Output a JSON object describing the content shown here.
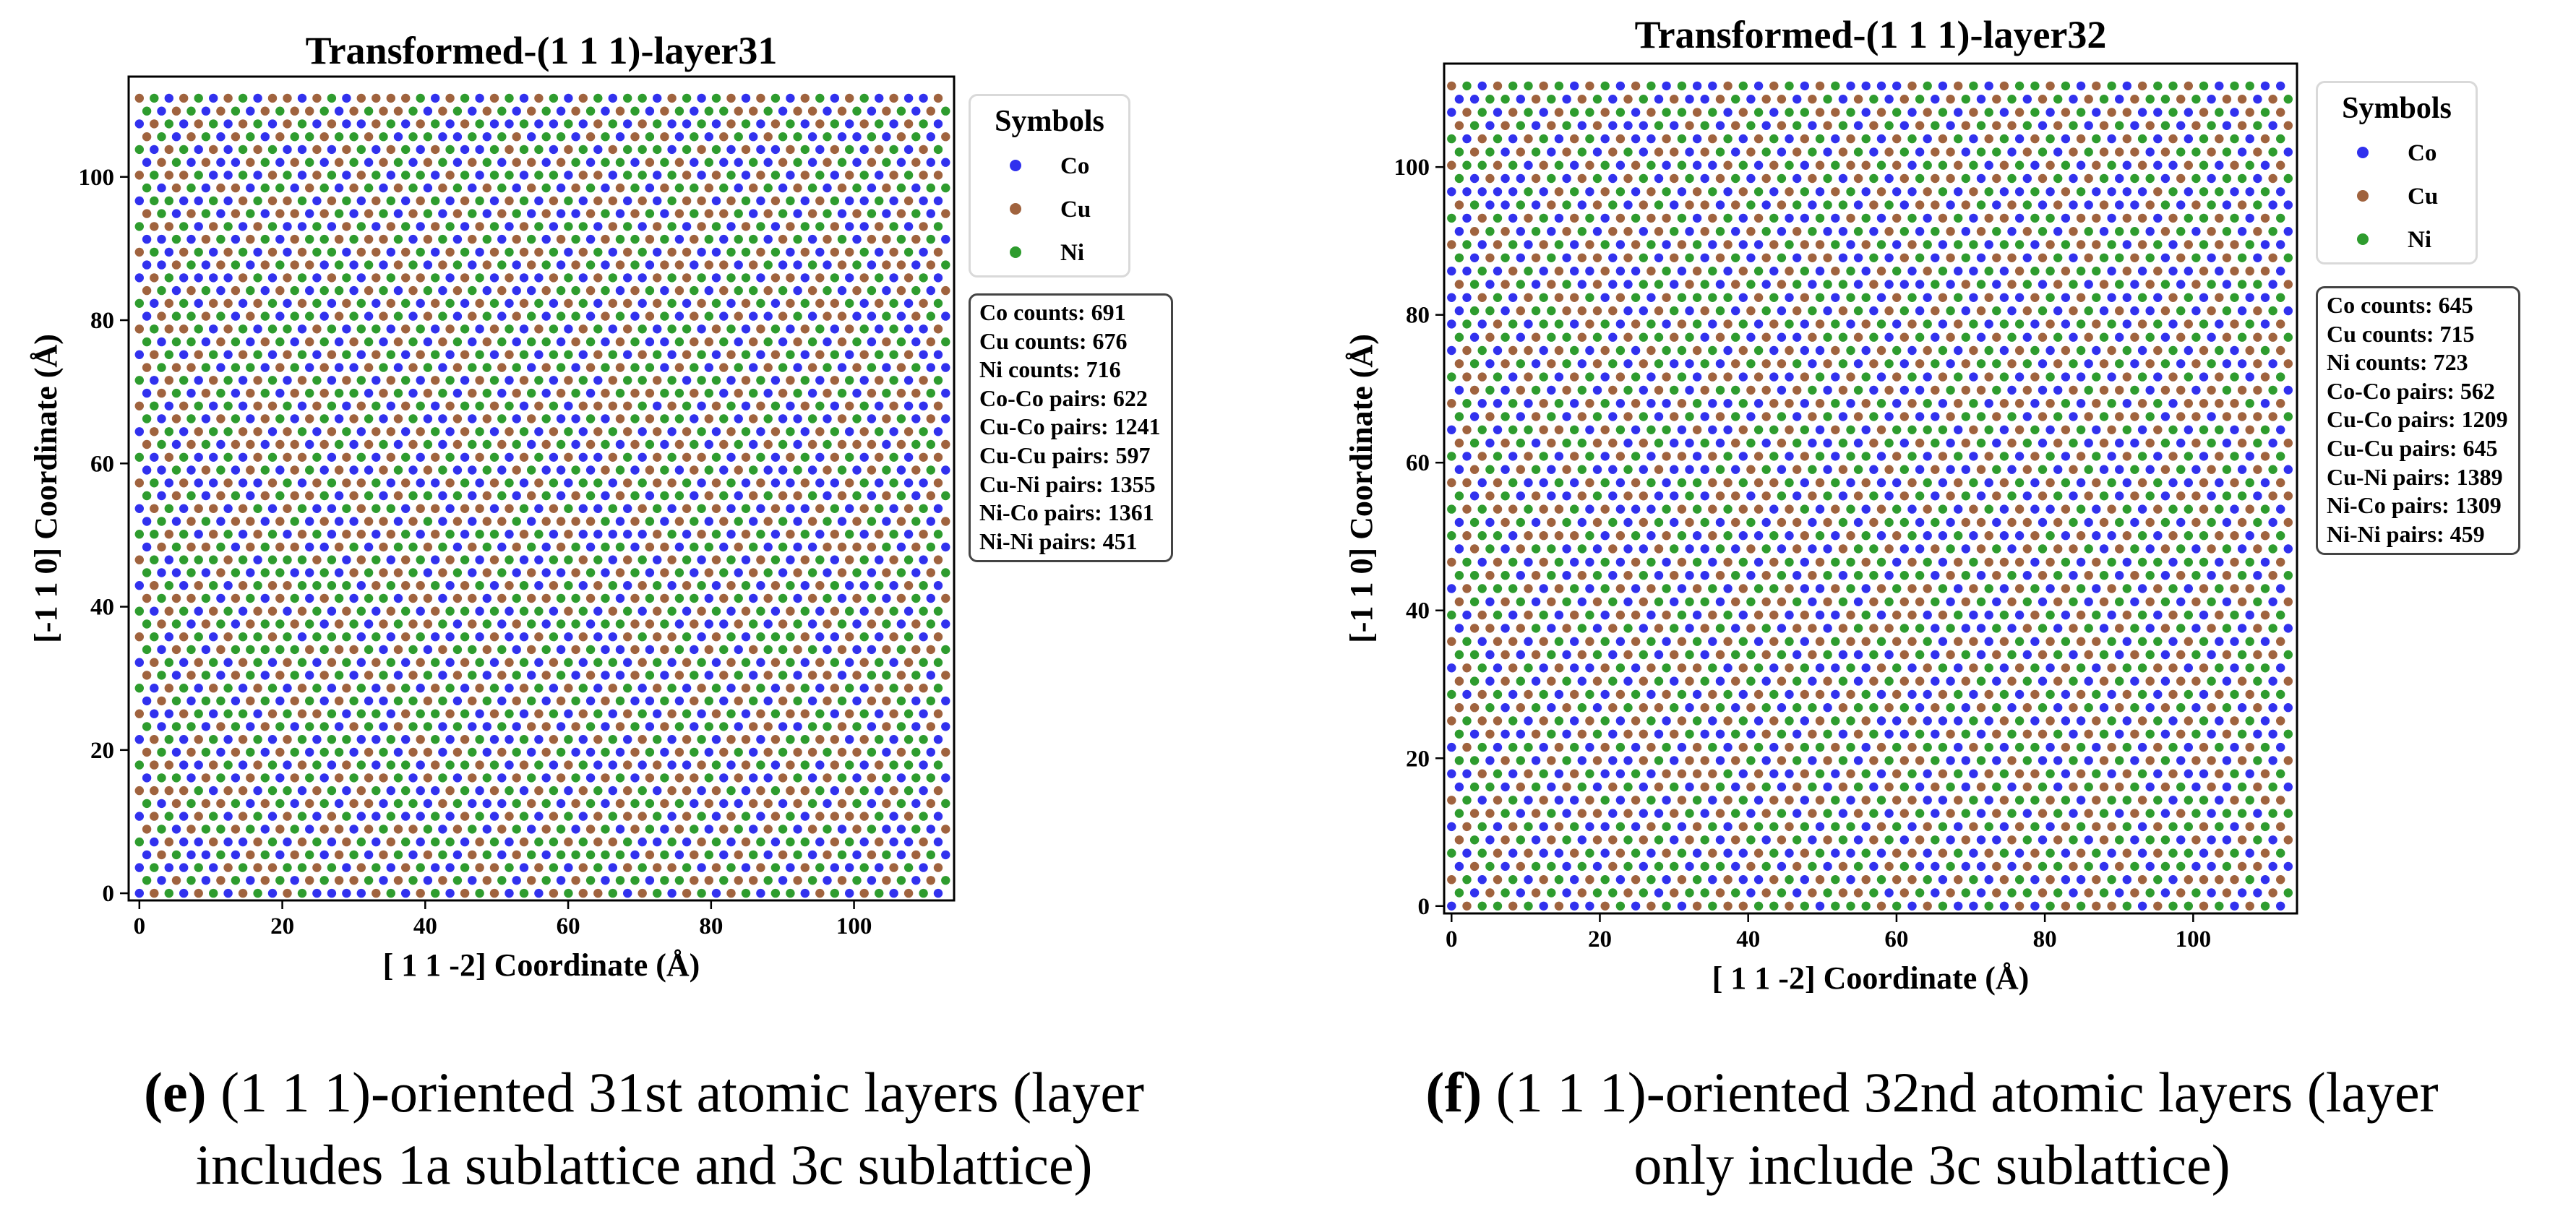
{
  "colors": {
    "Co": "#3131ee",
    "Cu": "#a0633e",
    "Ni": "#2e9c2e"
  },
  "panels": [
    {
      "title": "Transformed-(1 1 1)-layer31",
      "caption": {
        "label": "(e)",
        "line1": " (1 1 1)-oriented 31st atomic layers (layer",
        "line2": "includes 1a sublattice and 3c sublattice)"
      },
      "stats": [
        "Co counts: 691",
        "Cu counts: 676",
        "Ni counts: 716",
        "Co-Co pairs: 622",
        "Cu-Co pairs: 1241",
        "Cu-Cu pairs: 597",
        "Cu-Ni pairs: 1355",
        "Ni-Co pairs: 1361",
        "Ni-Ni pairs: 451"
      ]
    },
    {
      "title": "Transformed-(1 1 1)-layer32",
      "caption": {
        "label": "(f)",
        "line1": " (1 1 1)-oriented 32nd atomic layers (layer",
        "line2": "only include 3c sublattice)"
      },
      "stats": [
        "Co counts: 645",
        "Cu counts: 715",
        "Ni counts: 723",
        "Co-Co pairs: 562",
        "Cu-Co pairs: 1209",
        "Cu-Cu pairs: 645",
        "Cu-Ni pairs: 1389",
        "Ni-Co pairs: 1309",
        "Ni-Ni pairs: 459"
      ]
    }
  ],
  "chart_data": [
    {
      "type": "scatter",
      "title": "Transformed-(1 1 1)-layer31",
      "xlabel": "[ 1  1 -2] Coordinate (Å)",
      "ylabel": "[-1  1  0] Coordinate (Å)",
      "xlim": [
        -1.5,
        114
      ],
      "ylim": [
        -1,
        114
      ],
      "xticks": [
        0,
        20,
        40,
        60,
        80,
        100
      ],
      "yticks": [
        0,
        20,
        40,
        60,
        80,
        100
      ],
      "grid": false,
      "legend": {
        "title": "Symbols",
        "entries": [
          "Co",
          "Cu",
          "Ni"
        ],
        "placement": "outside-upper-right"
      },
      "lattice": {
        "x_spacing": 2.07,
        "y_spacing": 1.79,
        "alternate_row_shift": 1.035,
        "columns": 55,
        "rows": 63
      },
      "series": [
        {
          "name": "Co",
          "count": 691
        },
        {
          "name": "Cu",
          "count": 676
        },
        {
          "name": "Ni",
          "count": 716
        }
      ]
    },
    {
      "type": "scatter",
      "title": "Transformed-(1 1 1)-layer32",
      "xlabel": "[ 1  1 -2] Coordinate (Å)",
      "ylabel": "[-1  1  0] Coordinate (Å)",
      "xlim": [
        -1,
        114
      ],
      "ylim": [
        -1,
        114
      ],
      "xticks": [
        0,
        20,
        40,
        60,
        80,
        100
      ],
      "yticks": [
        0,
        20,
        40,
        60,
        80,
        100
      ],
      "grid": false,
      "legend": {
        "title": "Symbols",
        "entries": [
          "Co",
          "Cu",
          "Ni"
        ],
        "placement": "outside-upper-right"
      },
      "lattice": {
        "x_spacing": 2.07,
        "y_spacing": 1.79,
        "alternate_row_shift": 1.035,
        "columns": 55,
        "rows": 63
      },
      "series": [
        {
          "name": "Co",
          "count": 645
        },
        {
          "name": "Cu",
          "count": 715
        },
        {
          "name": "Ni",
          "count": 723
        }
      ]
    }
  ]
}
